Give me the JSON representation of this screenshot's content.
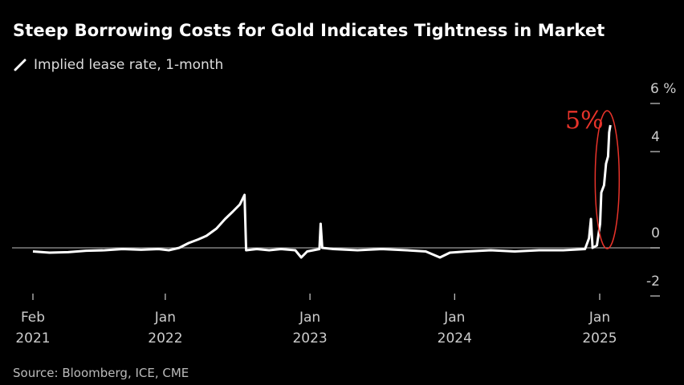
{
  "chart_data": {
    "type": "line",
    "title": "Steep Borrowing Costs for Gold Indicates Tightness in Market",
    "legend": [
      {
        "name": "Implied lease rate, 1-month",
        "icon": "slash-line-icon",
        "color": "#ffffff"
      }
    ],
    "source": "Source: Bloomberg, ICE, CME",
    "y_axis": {
      "position": "right",
      "unit": "%",
      "ticks": [
        6,
        4,
        0,
        -2
      ],
      "range": [
        -2,
        6
      ]
    },
    "x_axis": {
      "ticks": [
        {
          "date": "2021-02-01",
          "month": "Feb",
          "year": "2021"
        },
        {
          "date": "2022-01-01",
          "month": "Jan",
          "year": "2022"
        },
        {
          "date": "2023-01-01",
          "month": "Jan",
          "year": "2023"
        },
        {
          "date": "2024-01-01",
          "month": "Jan",
          "year": "2024"
        },
        {
          "date": "2025-01-01",
          "month": "Jan",
          "year": "2025"
        }
      ]
    },
    "zero_line": true,
    "grid": false,
    "annotation": {
      "text": "5%",
      "color": "#e8332a",
      "shape": "ellipse around early-2025 spike"
    },
    "series": [
      {
        "name": "Implied lease rate, 1-month",
        "color": "#ffffff",
        "points": [
          [
            "2021-02-01",
            -0.15
          ],
          [
            "2021-03-15",
            -0.2
          ],
          [
            "2021-05-01",
            -0.18
          ],
          [
            "2021-06-15",
            -0.12
          ],
          [
            "2021-08-01",
            -0.1
          ],
          [
            "2021-09-15",
            -0.05
          ],
          [
            "2021-11-01",
            -0.08
          ],
          [
            "2021-12-15",
            -0.05
          ],
          [
            "2022-01-10",
            -0.1
          ],
          [
            "2022-02-05",
            0.0
          ],
          [
            "2022-03-01",
            0.2
          ],
          [
            "2022-03-25",
            0.35
          ],
          [
            "2022-04-15",
            0.5
          ],
          [
            "2022-05-10",
            0.8
          ],
          [
            "2022-06-01",
            1.2
          ],
          [
            "2022-06-20",
            1.5
          ],
          [
            "2022-07-08",
            1.8
          ],
          [
            "2022-07-20",
            2.2
          ],
          [
            "2022-07-24",
            -0.1
          ],
          [
            "2022-08-20",
            -0.05
          ],
          [
            "2022-09-20",
            -0.1
          ],
          [
            "2022-10-20",
            -0.05
          ],
          [
            "2022-11-25",
            -0.1
          ],
          [
            "2022-12-10",
            -0.4
          ],
          [
            "2022-12-25",
            -0.15
          ],
          [
            "2023-01-25",
            -0.05
          ],
          [
            "2023-01-28",
            1.0
          ],
          [
            "2023-02-01",
            0.0
          ],
          [
            "2023-03-01",
            -0.05
          ],
          [
            "2023-05-01",
            -0.1
          ],
          [
            "2023-07-01",
            -0.05
          ],
          [
            "2023-09-01",
            -0.1
          ],
          [
            "2023-10-20",
            -0.15
          ],
          [
            "2023-11-25",
            -0.4
          ],
          [
            "2023-12-20",
            -0.2
          ],
          [
            "2024-02-01",
            -0.15
          ],
          [
            "2024-04-01",
            -0.1
          ],
          [
            "2024-06-01",
            -0.15
          ],
          [
            "2024-08-01",
            -0.1
          ],
          [
            "2024-10-01",
            -0.1
          ],
          [
            "2024-11-25",
            -0.05
          ],
          [
            "2024-12-05",
            0.4
          ],
          [
            "2024-12-10",
            1.2
          ],
          [
            "2024-12-14",
            0.0
          ],
          [
            "2024-12-25",
            0.1
          ],
          [
            "2025-01-02",
            1.0
          ],
          [
            "2025-01-05",
            2.3
          ],
          [
            "2025-01-12",
            2.6
          ],
          [
            "2025-01-17",
            3.5
          ],
          [
            "2025-01-22",
            3.8
          ],
          [
            "2025-01-25",
            4.8
          ],
          [
            "2025-01-28",
            5.1
          ]
        ]
      }
    ]
  }
}
